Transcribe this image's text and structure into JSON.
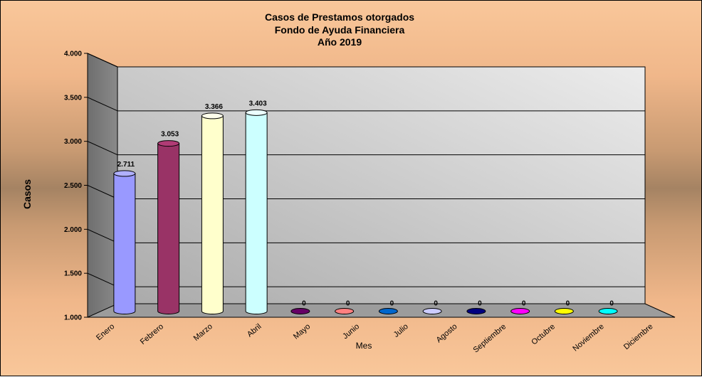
{
  "chart_data": {
    "type": "bar",
    "title": "Casos de Prestamos otorgados",
    "subtitle_lines": [
      "Fondo de Ayuda  Financiera",
      "Año  2019"
    ],
    "xlabel": "Mes",
    "ylabel": "Casos",
    "ylim": [
      1000,
      4000
    ],
    "yticks": [
      "1.000",
      "1.500",
      "2.000",
      "2.500",
      "3.000",
      "3.500",
      "4.000"
    ],
    "grid": true,
    "categories": [
      "Enero",
      "Febrero",
      "Marzo",
      "Abril",
      "Mayo",
      "Junio",
      "Julio",
      "Agosto",
      "Septiembre",
      "Octubre",
      "Noviembre",
      "Diciembre"
    ],
    "values": [
      2711,
      3053,
      3366,
      3403,
      0,
      0,
      0,
      0,
      0,
      0,
      0,
      0
    ],
    "value_labels": [
      "2.711",
      "3.053",
      "3.366",
      "3.403",
      "0",
      "0",
      "0",
      "0",
      "0",
      "0",
      "0",
      "0"
    ],
    "colors": [
      "#9999ff",
      "#993366",
      "#ffffcc",
      "#ccffff",
      "#660066",
      "#ff8080",
      "#0066cc",
      "#ccccff",
      "#000080",
      "#ff00ff",
      "#ffff00",
      "#00ffff"
    ]
  }
}
